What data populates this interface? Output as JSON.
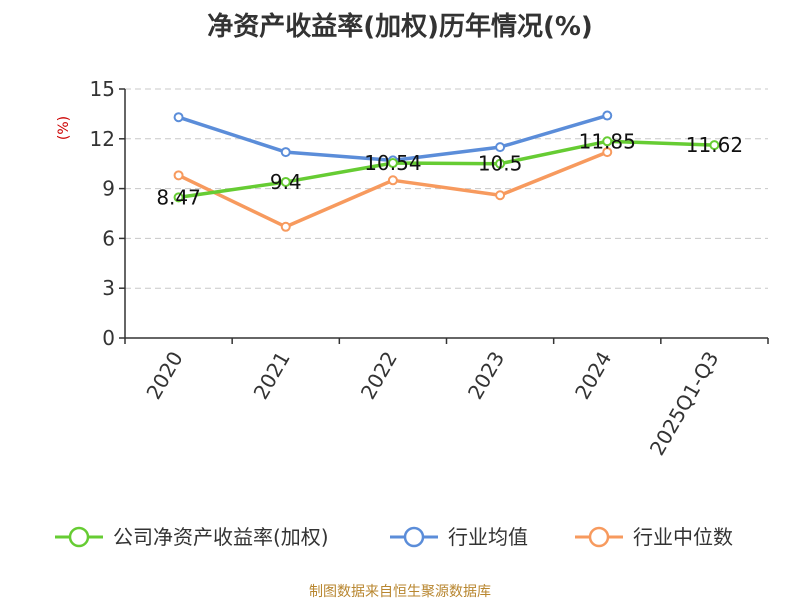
{
  "chart_data": {
    "type": "line",
    "title": "净资产收益率(加权)历年情况(%)",
    "ylabel": "(%)",
    "xlabel": "",
    "categories": [
      "2020",
      "2021",
      "2022",
      "2023",
      "2024",
      "2025Q1-Q3"
    ],
    "ylim": [
      0,
      15
    ],
    "yticks": [
      0,
      3,
      6,
      9,
      12,
      15
    ],
    "grid": true,
    "legend_position": "bottom",
    "series": [
      {
        "name": "公司净资产收益率(加权)",
        "color": "#66cc33",
        "values": [
          8.47,
          9.4,
          10.54,
          10.5,
          11.85,
          11.62
        ],
        "labels": [
          "8.47",
          "9.4",
          "10.54",
          "10.5",
          "11.85",
          "11.62"
        ]
      },
      {
        "name": "行业均值",
        "color": "#5b8dd9",
        "values": [
          13.3,
          11.2,
          10.7,
          11.5,
          13.4,
          null
        ]
      },
      {
        "name": "行业中位数",
        "color": "#f79a5e",
        "values": [
          9.8,
          6.7,
          9.5,
          8.6,
          11.2,
          null
        ]
      }
    ]
  },
  "footer": {
    "source": "制图数据来自恒生聚源数据库"
  }
}
